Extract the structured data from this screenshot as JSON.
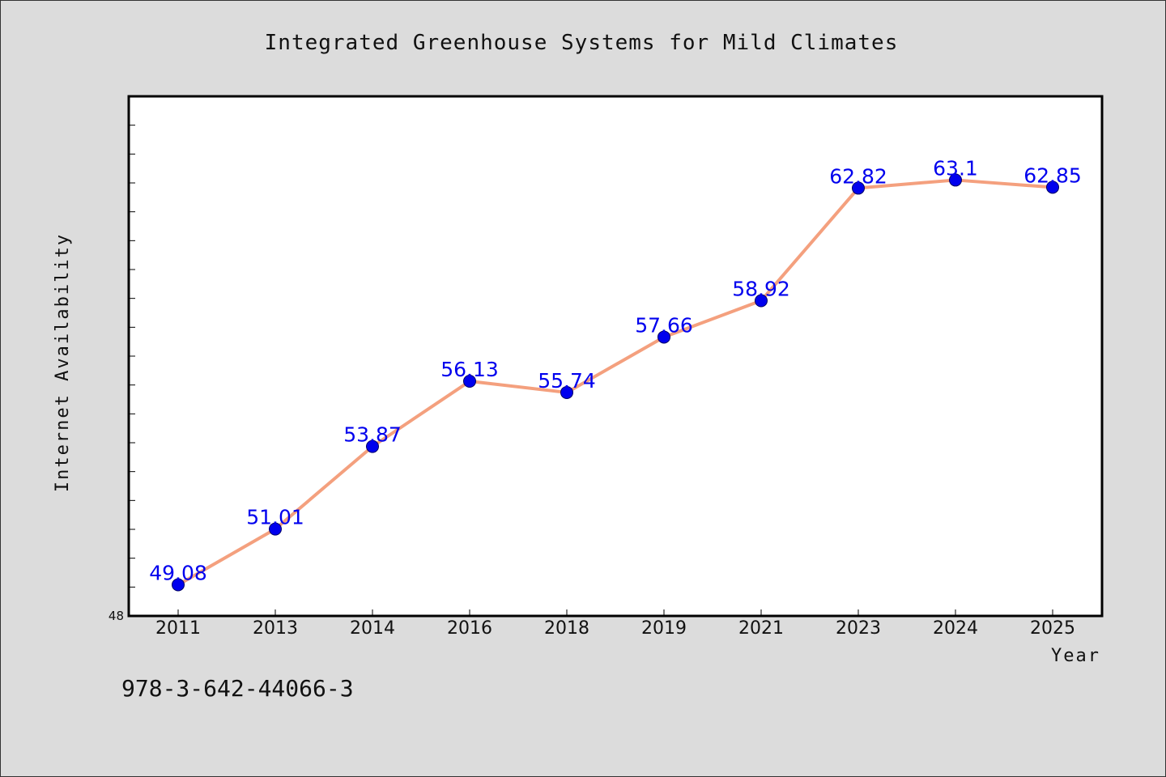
{
  "chart_data": {
    "type": "line",
    "title": "Integrated Greenhouse Systems for Mild Climates",
    "xlabel": "Year",
    "ylabel": "Internet Availability",
    "categories": [
      "2011",
      "2013",
      "2014",
      "2016",
      "2018",
      "2019",
      "2021",
      "2023",
      "2024",
      "2025"
    ],
    "series": [
      {
        "values": [
          49.08,
          51.01,
          53.87,
          56.13,
          55.74,
          57.66,
          58.92,
          62.82,
          63.1,
          62.85
        ],
        "data_labels": [
          "49.08",
          "51.01",
          "53.87",
          "56.13",
          "55.74",
          "57.66",
          "58.92",
          "62.82",
          "63.1",
          "62.85"
        ]
      }
    ],
    "ylim": [
      48,
      66
    ],
    "yticks_labeled": [
      "48"
    ],
    "grid": false,
    "legend": "none",
    "colors": {
      "line": "#f4a07e",
      "marker": "#0000ee",
      "data_label": "#0000ee",
      "plot_bg": "#ffffff",
      "page_bg": "#dcdcdc"
    }
  },
  "footer": {
    "code": "978-3-642-44066-3"
  }
}
